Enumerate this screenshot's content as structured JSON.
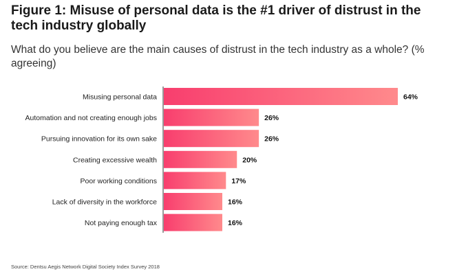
{
  "figure": {
    "title": "Figure 1: Misuse of personal data is the #1 driver of distrust in the tech industry globally",
    "subtitle": "What do you believe are the main causes of distrust in the tech industry as a whole? (% agreeing)",
    "source": "Source: Dentsu Aegis Network Digital Society Index Survey 2018"
  },
  "colors": {
    "bar_start": "#f83e6e",
    "bar_end": "#ff8a8c",
    "axis": "#333333"
  },
  "chart_data": {
    "type": "bar",
    "orientation": "horizontal",
    "categories": [
      "Misusing personal data",
      "Automation and not creating enough jobs",
      "Pursuing innovation for its own sake",
      "Creating excessive wealth",
      "Poor working conditions",
      "Lack of diversity in the workforce",
      "Not paying enough tax"
    ],
    "values": [
      64,
      26,
      26,
      20,
      17,
      16,
      16
    ],
    "value_labels": [
      "64%",
      "26%",
      "26%",
      "20%",
      "17%",
      "16%",
      "16%"
    ],
    "unit": "%",
    "xlim": [
      0,
      64
    ],
    "grid": false,
    "legend": "none"
  }
}
